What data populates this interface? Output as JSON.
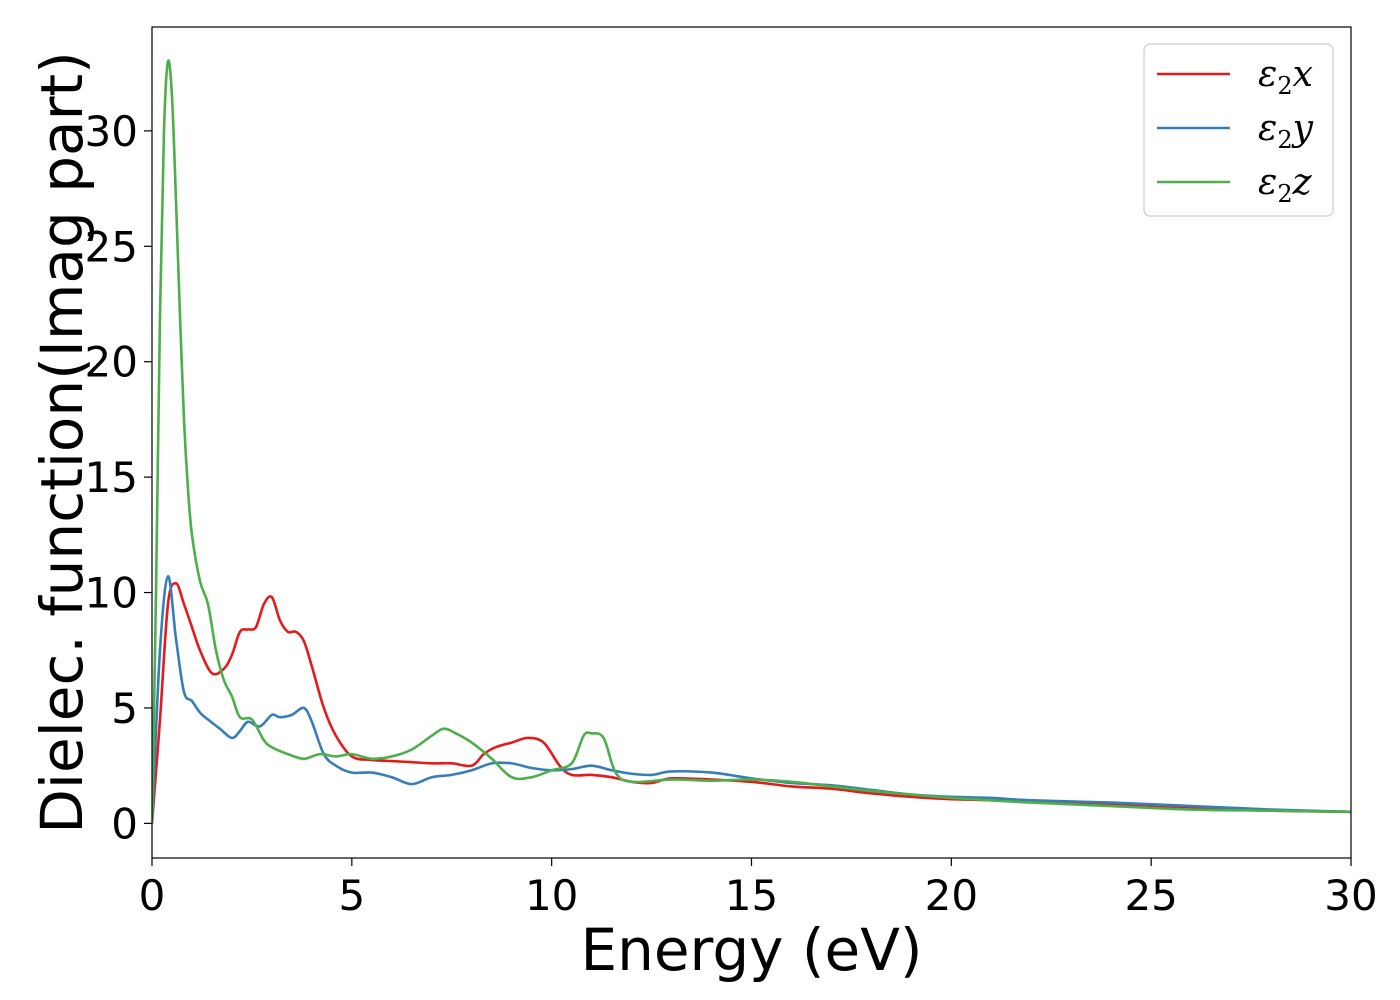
{
  "chart_data": {
    "type": "line",
    "title": "",
    "xlabel": "Energy (eV)",
    "ylabel": "Dielec. function(Imag part)",
    "xlim": [
      0,
      30
    ],
    "ylim": [
      -1.5,
      34.5
    ],
    "xticks": [
      0,
      5,
      10,
      15,
      20,
      25,
      30
    ],
    "yticks": [
      0,
      5,
      10,
      15,
      20,
      25,
      30
    ],
    "grid": false,
    "legend_position": "top-right",
    "series": [
      {
        "name": "ε2x",
        "legend": {
          "base": "ε",
          "sub": "2",
          "tail": "x"
        },
        "color": "#e41a1c",
        "x": [
          0,
          0.2,
          0.4,
          0.6,
          0.8,
          1.0,
          1.2,
          1.5,
          1.8,
          2.0,
          2.2,
          2.4,
          2.6,
          2.8,
          3.0,
          3.2,
          3.4,
          3.6,
          3.8,
          4.0,
          4.3,
          4.6,
          5.0,
          5.5,
          6.0,
          6.5,
          7.0,
          7.5,
          8.0,
          8.3,
          8.6,
          9.0,
          9.4,
          9.8,
          10.2,
          10.5,
          11.0,
          11.5,
          12.0,
          12.5,
          13.0,
          14.0,
          15.0,
          16.0,
          17.0,
          18.0,
          19.0,
          20.0,
          22.0,
          24.0,
          26.0,
          28.0,
          30.0
        ],
        "y": [
          0,
          4.5,
          9.5,
          10.4,
          9.5,
          8.5,
          7.5,
          6.5,
          6.7,
          7.3,
          8.3,
          8.4,
          8.5,
          9.5,
          9.8,
          8.8,
          8.3,
          8.3,
          7.9,
          6.8,
          5.0,
          3.8,
          2.9,
          2.75,
          2.7,
          2.65,
          2.6,
          2.6,
          2.5,
          3.0,
          3.3,
          3.5,
          3.7,
          3.5,
          2.5,
          2.1,
          2.1,
          2.0,
          1.8,
          1.75,
          1.95,
          1.9,
          1.8,
          1.6,
          1.5,
          1.3,
          1.15,
          1.05,
          0.95,
          0.8,
          0.65,
          0.55,
          0.5
        ]
      },
      {
        "name": "ε2y",
        "legend": {
          "base": "ε",
          "sub": "2",
          "tail": "y"
        },
        "color": "#377eb8",
        "x": [
          0,
          0.2,
          0.4,
          0.6,
          0.8,
          1.0,
          1.2,
          1.4,
          1.7,
          2.0,
          2.2,
          2.4,
          2.7,
          3.0,
          3.2,
          3.5,
          3.8,
          4.0,
          4.3,
          4.6,
          5.0,
          5.5,
          6.0,
          6.5,
          7.0,
          7.5,
          8.0,
          8.5,
          9.0,
          9.5,
          10.0,
          10.5,
          11.0,
          11.5,
          12.0,
          12.5,
          13.0,
          14.0,
          15.0,
          16.0,
          17.0,
          18.0,
          19.0,
          20.0,
          21.0,
          22.0,
          24.0,
          26.0,
          28.0,
          30.0
        ],
        "y": [
          0,
          7.5,
          10.7,
          8.0,
          5.7,
          5.3,
          4.8,
          4.5,
          4.1,
          3.7,
          4.0,
          4.4,
          4.2,
          4.7,
          4.6,
          4.7,
          5.0,
          4.4,
          3.0,
          2.5,
          2.2,
          2.2,
          2.0,
          1.7,
          2.0,
          2.1,
          2.3,
          2.6,
          2.6,
          2.4,
          2.3,
          2.35,
          2.5,
          2.3,
          2.15,
          2.1,
          2.25,
          2.2,
          1.95,
          1.75,
          1.65,
          1.45,
          1.25,
          1.15,
          1.1,
          1.0,
          0.9,
          0.75,
          0.6,
          0.5
        ]
      },
      {
        "name": "ε2z",
        "legend": {
          "base": "ε",
          "sub": "2",
          "tail": "z"
        },
        "color": "#4daf4a",
        "x": [
          0,
          0.1,
          0.2,
          0.3,
          0.4,
          0.5,
          0.6,
          0.7,
          0.8,
          0.9,
          1.0,
          1.2,
          1.4,
          1.6,
          1.8,
          2.0,
          2.2,
          2.5,
          2.8,
          3.0,
          3.4,
          3.8,
          4.2,
          4.6,
          5.0,
          5.5,
          6.0,
          6.5,
          7.0,
          7.3,
          7.6,
          8.0,
          8.5,
          9.0,
          9.5,
          10.0,
          10.5,
          10.8,
          11.0,
          11.3,
          11.6,
          12.0,
          13.0,
          14.0,
          15.0,
          16.0,
          17.0,
          18.0,
          19.0,
          20.0,
          22.0,
          24.0,
          26.0,
          28.0,
          30.0
        ],
        "y": [
          0,
          10,
          22,
          30,
          33.0,
          31.5,
          27.0,
          22.0,
          17.5,
          14.5,
          12.5,
          10.5,
          9.5,
          7.5,
          6.2,
          5.5,
          4.6,
          4.5,
          3.6,
          3.3,
          3.0,
          2.8,
          3.0,
          2.9,
          3.0,
          2.8,
          2.9,
          3.2,
          3.8,
          4.1,
          3.9,
          3.5,
          2.8,
          2.0,
          2.0,
          2.3,
          2.6,
          3.8,
          3.9,
          3.7,
          2.2,
          1.8,
          1.9,
          1.85,
          1.9,
          1.8,
          1.6,
          1.4,
          1.25,
          1.1,
          0.9,
          0.75,
          0.6,
          0.55,
          0.5
        ]
      }
    ]
  }
}
